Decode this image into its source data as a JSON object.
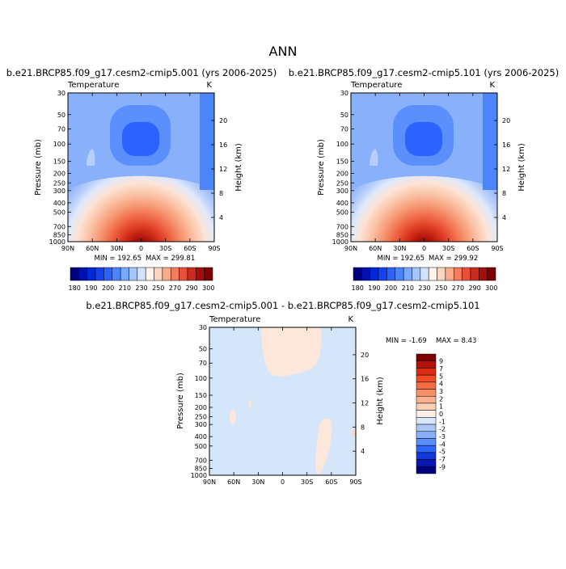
{
  "page_title": "ANN",
  "chart_data": [
    {
      "type": "heatmap",
      "title": "b.e21.BRCP85.f09_g17.cesm2-cmip5.001 (yrs 2006-2025)",
      "variable": "Temperature",
      "units": "K",
      "xlabel": "",
      "ylabel": "Pressure (mb)",
      "y2label": "Height (km)",
      "x_ticks": [
        "90N",
        "60N",
        "30N",
        "0",
        "30S",
        "60S",
        "90S"
      ],
      "y_ticks": [
        "30",
        "50",
        "70",
        "100",
        "150",
        "200",
        "250",
        "300",
        "400",
        "500",
        "700",
        "850",
        "1000"
      ],
      "y2_ticks": [
        "20",
        "16",
        "12",
        "8",
        "4"
      ],
      "min_label": "MIN = 192.65",
      "max_label": "MAX = 299.81",
      "min": 192.65,
      "max": 299.81,
      "colorbar": {
        "levels": [
          "180",
          "190",
          "200",
          "210",
          "220",
          "230",
          "240",
          "250",
          "260",
          "270",
          "280",
          "290",
          "300"
        ],
        "labels": [
          "180",
          "190",
          "200",
          "210",
          "230",
          "250",
          "270",
          "290",
          "300"
        ],
        "colors": [
          "#00007f",
          "#0011ad",
          "#0029d6",
          "#1442f2",
          "#2a62ff",
          "#4a84ff",
          "#79a8ff",
          "#a6c6fa",
          "#d0e2fc",
          "#fff3ea",
          "#fcd5bd",
          "#f9ab8b",
          "#f27c5c",
          "#e8503a",
          "#cc2a1c",
          "#a40e0b",
          "#7c0000"
        ]
      }
    },
    {
      "type": "heatmap",
      "title": "b.e21.BRCP85.f09_g17.cesm2-cmip5.101 (yrs 2006-2025)",
      "variable": "Temperature",
      "units": "K",
      "xlabel": "",
      "ylabel": "Pressure (mb)",
      "y2label": "Height (km)",
      "x_ticks": [
        "90N",
        "60N",
        "30N",
        "0",
        "30S",
        "60S",
        "90S"
      ],
      "y_ticks": [
        "30",
        "50",
        "70",
        "100",
        "150",
        "200",
        "250",
        "300",
        "400",
        "500",
        "700",
        "850",
        "1000"
      ],
      "y2_ticks": [
        "20",
        "16",
        "12",
        "8",
        "4"
      ],
      "min_label": "MIN = 192.65",
      "max_label": "MAX = 299.92",
      "min": 192.65,
      "max": 299.92,
      "colorbar": {
        "levels": [
          "180",
          "190",
          "200",
          "210",
          "220",
          "230",
          "240",
          "250",
          "260",
          "270",
          "280",
          "290",
          "300"
        ],
        "labels": [
          "180",
          "190",
          "200",
          "210",
          "230",
          "250",
          "270",
          "290",
          "300"
        ],
        "colors": [
          "#00007f",
          "#0011ad",
          "#0029d6",
          "#1442f2",
          "#2a62ff",
          "#4a84ff",
          "#79a8ff",
          "#a6c6fa",
          "#d0e2fc",
          "#fff3ea",
          "#fcd5bd",
          "#f9ab8b",
          "#f27c5c",
          "#e8503a",
          "#cc2a1c",
          "#a40e0b",
          "#7c0000"
        ]
      }
    },
    {
      "type": "heatmap",
      "title": "b.e21.BRCP85.f09_g17.cesm2-cmip5.001 - b.e21.BRCP85.f09_g17.cesm2-cmip5.101",
      "variable": "Temperature",
      "units": "K",
      "xlabel": "",
      "ylabel": "Pressure (mb)",
      "y2label": "Height (km)",
      "x_ticks": [
        "90N",
        "60N",
        "30N",
        "0",
        "30S",
        "60S",
        "90S"
      ],
      "y_ticks": [
        "30",
        "50",
        "70",
        "100",
        "150",
        "200",
        "250",
        "300",
        "400",
        "500",
        "700",
        "850",
        "1000"
      ],
      "y2_ticks": [
        "20",
        "16",
        "12",
        "8",
        "4"
      ],
      "min_label": "MIN =   -1.69",
      "max_label": "MAX =   8.43",
      "min": -1.69,
      "max": 8.43,
      "colorbar": {
        "labels": [
          "9",
          "7",
          "5",
          "4",
          "3",
          "2",
          "1",
          "0",
          "-1",
          "-2",
          "-3",
          "-4",
          "-5",
          "-7",
          "-9"
        ],
        "colors": [
          "#7c0000",
          "#b01108",
          "#dd2a12",
          "#f04a26",
          "#f56c44",
          "#f79066",
          "#f8b292",
          "#fad1b8",
          "#fcefe3",
          "#d7e6fa",
          "#abc8f5",
          "#86aff7",
          "#5b8dfb",
          "#2f64ff",
          "#1238dd",
          "#0a17b3",
          "#00007f"
        ]
      }
    }
  ]
}
